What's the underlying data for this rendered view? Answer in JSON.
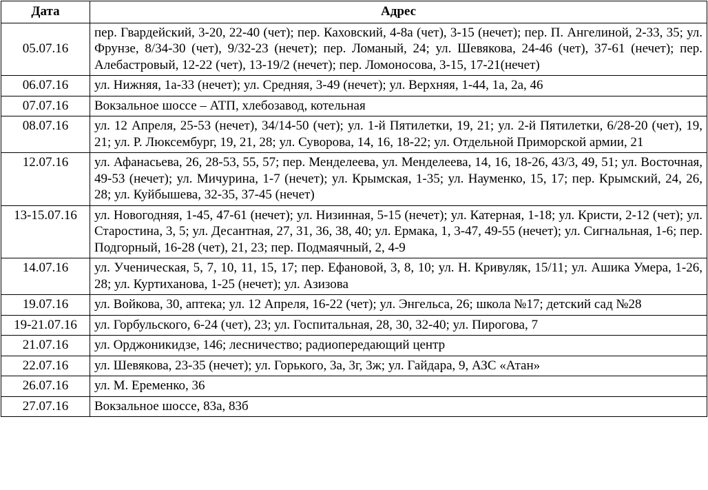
{
  "table": {
    "headers": {
      "date": "Дата",
      "address": "Адрес"
    },
    "rows": [
      {
        "date": "05.07.16",
        "address": "пер. Гвардейский, 3-20, 22-40 (чет); пер. Каховский, 4-8а (чет), 3-15 (нечет); пер. П. Ангелиной, 2-33, 35; ул. Фрунзе, 8/34-30 (чет), 9/32-23 (нечет); пер. Ломаный, 24; ул. Шевякова, 24-46 (чет), 37-61 (нечет); пер. Алебастровый, 12-22 (чет), 13-19/2 (нечет); пер. Ломоносова, 3-15, 17-21(нечет)"
      },
      {
        "date": "06.07.16",
        "address": "ул. Нижняя, 1а-33 (нечет); ул. Средняя, 3-49 (нечет); ул. Верхняя, 1-44, 1а, 2а, 46"
      },
      {
        "date": "07.07.16",
        "address": "Вокзальное шоссе – АТП, хлебозавод, котельная"
      },
      {
        "date": "08.07.16",
        "address": "ул. 12 Апреля, 25-53 (нечет), 34/14-50 (чет); ул. 1-й Пятилетки, 19, 21; ул. 2-й Пятилетки, 6/28-20 (чет), 19, 21; ул. Р. Люксембург, 19, 21, 28; ул. Суворова, 14, 16, 18-22; ул. Отдельной Приморской армии, 21"
      },
      {
        "date": "12.07.16",
        "address": "ул. Афанасьева, 26, 28-53, 55, 57; пер. Менделеева, ул. Менделеева, 14, 16, 18-26, 43/3, 49, 51; ул. Восточная, 49-53 (нечет); ул. Мичурина, 1-7 (нечет); ул. Крымская, 1-35; ул. Науменко, 15, 17; пер. Крымский, 24, 26, 28; ул. Куйбышева, 32-35, 37-45 (нечет)"
      },
      {
        "date": "13-15.07.16",
        "address": "ул. Новогодняя, 1-45, 47-61 (нечет); ул. Низинная, 5-15 (нечет); ул. Катерная, 1-18; ул. Кристи, 2-12 (чет); ул. Старостина, 3, 5; ул. Десантная, 27, 31, 36, 38, 40; ул. Ермака, 1, 3-47, 49-55 (нечет); ул. Сигнальная, 1-6; пер. Подгорный, 16-28 (чет), 21, 23; пер. Подмаячный, 2, 4-9"
      },
      {
        "date": "14.07.16",
        "address": "ул. Ученическая, 5, 7, 10, 11, 15, 17; пер. Ефановой, 3, 8, 10; ул. Н. Кривуляк, 15/11; ул. Ашика Умера, 1-26, 28; ул. Куртиханова, 1-25 (нечет); ул. Азизова"
      },
      {
        "date": "19.07.16",
        "address": "ул. Войкова, 30, аптека; ул. 12 Апреля, 16-22 (чет); ул. Энгельса, 26; школа №17; детский сад №28"
      },
      {
        "date": "19-21.07.16",
        "address": "ул. Горбульского, 6-24 (чет), 23; ул. Госпитальная, 28, 30, 32-40; ул. Пирогова, 7"
      },
      {
        "date": "21.07.16",
        "address": "ул. Орджоникидзе, 146; лесничество; радиопередающий центр"
      },
      {
        "date": "22.07.16",
        "address": "ул. Шевякова, 23-35 (нечет); ул. Горького, 3а, 3г, 3ж; ул. Гайдара, 9, АЗС «Атан»"
      },
      {
        "date": "26.07.16",
        "address": "ул. М. Еременко, 36"
      },
      {
        "date": "27.07.16",
        "address": "Вокзальное шоссе, 83а, 83б"
      }
    ]
  }
}
